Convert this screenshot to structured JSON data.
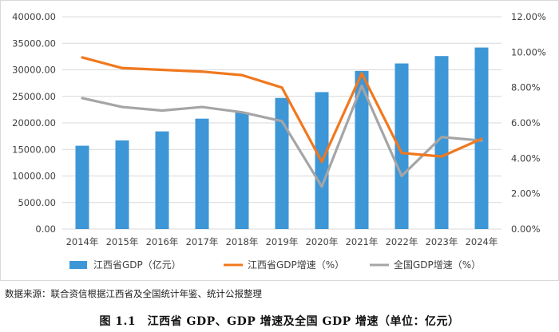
{
  "chart_data": {
    "type": "bar+line",
    "categories": [
      "2014年",
      "2015年",
      "2016年",
      "2017年",
      "2018年",
      "2019年",
      "2020年",
      "2021年",
      "2022年",
      "2023年",
      "2024年"
    ],
    "left_axis": {
      "min": 0,
      "max": 40000,
      "step": 5000,
      "tick_labels": [
        "0.00",
        "5000.00",
        "10000.00",
        "15000.00",
        "20000.00",
        "25000.00",
        "30000.00",
        "35000.00",
        "40000.00"
      ]
    },
    "right_axis": {
      "min": 0,
      "max": 12,
      "step": 2,
      "tick_labels": [
        "0.00%",
        "2.00%",
        "4.00%",
        "6.00%",
        "8.00%",
        "10.00%",
        "12.00%"
      ]
    },
    "series": [
      {
        "name": "江西省GDP（亿元）",
        "type": "bar",
        "axis": "left",
        "color": "#3d96d6",
        "values": [
          15700,
          16700,
          18400,
          20800,
          22000,
          24700,
          25800,
          29800,
          31200,
          32600,
          34200
        ]
      },
      {
        "name": "江西省GDP增速（%）",
        "type": "line",
        "axis": "right",
        "color": "#f0781e",
        "values": [
          9.7,
          9.1,
          9.0,
          8.9,
          8.7,
          8.0,
          3.8,
          8.8,
          4.3,
          4.1,
          5.1
        ]
      },
      {
        "name": "全国GDP增速（%）",
        "type": "line",
        "axis": "right",
        "color": "#a5a5a5",
        "values": [
          7.4,
          6.9,
          6.7,
          6.9,
          6.6,
          6.1,
          2.4,
          8.1,
          3.0,
          5.2,
          5.0
        ]
      }
    ],
    "legend_position": "bottom",
    "grid": true
  },
  "source_note": "数据来源：联合资信根据江西省及全国统计年鉴、统计公报整理",
  "caption": "图 1.1　江西省 GDP、GDP 增速及全国 GDP 增速（单位：亿元）"
}
